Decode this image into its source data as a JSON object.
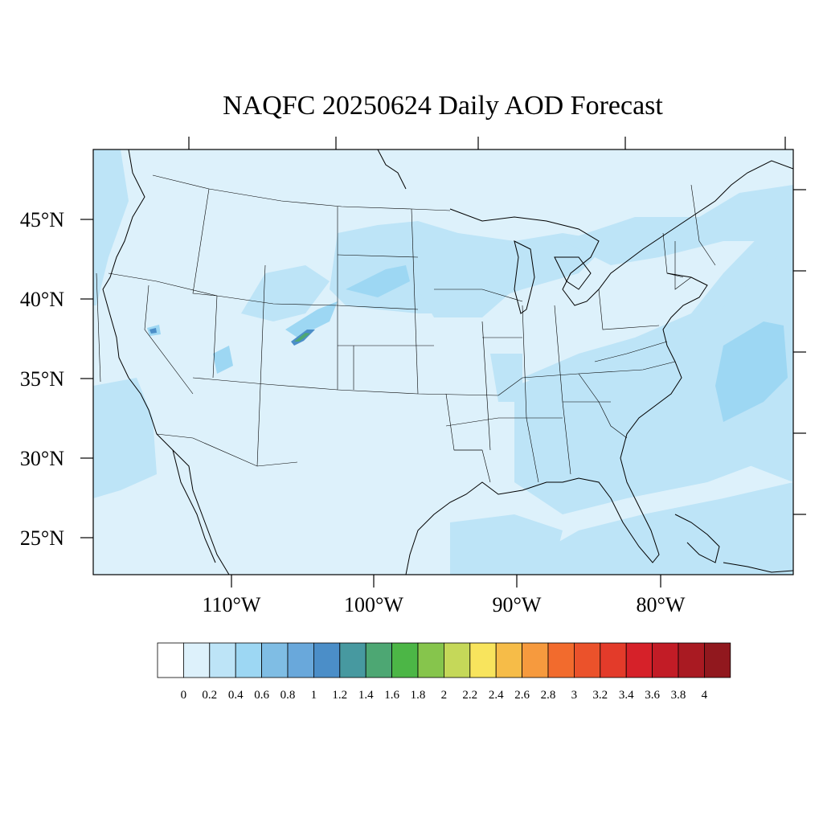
{
  "map": {
    "title": "NAQFC 20250624 Daily AOD Forecast",
    "lat_labels": [
      "45°N",
      "40°N",
      "35°N",
      "30°N",
      "25°N"
    ],
    "lon_labels": [
      "110°W",
      "100°W",
      "90°W",
      "80°W"
    ],
    "colors": {
      "ocean_low": "#ddf1fb",
      "aod_02_04": "#bde4f7",
      "aod_04_06": "#9dd7f3",
      "aod_1_12": "#4b8ec8",
      "aod_14_16": "#4da773",
      "border": "#000000"
    }
  },
  "colorbar": {
    "labels": [
      "0",
      "0.2",
      "0.4",
      "0.6",
      "0.8",
      "1",
      "1.2",
      "1.4",
      "1.6",
      "1.8",
      "2",
      "2.2",
      "2.4",
      "2.6",
      "2.8",
      "3",
      "3.2",
      "3.4",
      "3.6",
      "3.8",
      "4"
    ],
    "colors": [
      "#ffffff",
      "#ddf1fb",
      "#bde4f7",
      "#9dd7f3",
      "#7fbde4",
      "#69a8db",
      "#4b8ec8",
      "#4799a0",
      "#4da773",
      "#4cb646",
      "#86c54c",
      "#c5d859",
      "#f8e45d",
      "#f6bc48",
      "#f69a3e",
      "#f26b2d",
      "#eb522b",
      "#e33b2a",
      "#d62129",
      "#c21c26",
      "#a91a22",
      "#91181e"
    ]
  }
}
